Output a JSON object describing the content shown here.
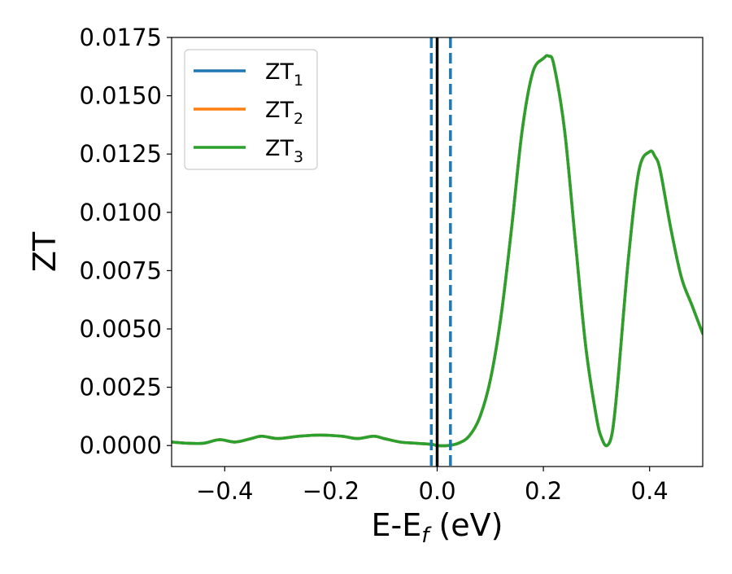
{
  "chart_data": {
    "type": "line",
    "xlabel": "E-E",
    "xlabel_subscript": "f",
    "xlabel_unit": " (eV)",
    "ylabel": "ZT",
    "xlim": [
      -0.5,
      0.5
    ],
    "ylim": [
      -0.0009,
      0.0175
    ],
    "xticks": [
      -0.4,
      -0.2,
      0.0,
      0.2,
      0.4
    ],
    "xtick_labels": [
      "−0.4",
      "−0.2",
      "0.0",
      "0.2",
      "0.4"
    ],
    "yticks": [
      0.0,
      0.0025,
      0.005,
      0.0075,
      0.01,
      0.0125,
      0.015,
      0.0175
    ],
    "ytick_labels": [
      "0.0000",
      "0.0025",
      "0.0050",
      "0.0075",
      "0.0100",
      "0.0125",
      "0.0150",
      "0.0175"
    ],
    "grid": false,
    "legend_position": "top-left",
    "vertical_lines": [
      {
        "x": -0.011,
        "style": "dashed",
        "color": "#1f77b4"
      },
      {
        "x": 0.0,
        "style": "solid",
        "color": "#000000"
      },
      {
        "x": 0.025,
        "style": "dashed",
        "color": "#1f77b4"
      }
    ],
    "series": [
      {
        "name": "ZT",
        "subscript": "1",
        "color": "#1f77b4",
        "x": [
          -0.5,
          -0.47,
          -0.44,
          -0.41,
          -0.38,
          -0.35,
          -0.33,
          -0.3,
          -0.26,
          -0.22,
          -0.18,
          -0.15,
          -0.12,
          -0.1,
          -0.07,
          -0.04,
          -0.01,
          0.0,
          0.02,
          0.04,
          0.06,
          0.08,
          0.1,
          0.12,
          0.14,
          0.16,
          0.18,
          0.2,
          0.21,
          0.22,
          0.24,
          0.26,
          0.28,
          0.3,
          0.31,
          0.32,
          0.33,
          0.34,
          0.36,
          0.38,
          0.4,
          0.41,
          0.42,
          0.44,
          0.46,
          0.48,
          0.5
        ],
        "y": [
          0.00015,
          0.0001,
          0.0001,
          0.00025,
          0.00015,
          0.0003,
          0.0004,
          0.0003,
          0.0004,
          0.00045,
          0.0004,
          0.0003,
          0.0004,
          0.0003,
          0.00015,
          0.0001,
          5e-05,
          0.0,
          0.0,
          0.0001,
          0.0004,
          0.0012,
          0.0028,
          0.0055,
          0.0093,
          0.0135,
          0.016,
          0.0166,
          0.0167,
          0.0163,
          0.0135,
          0.0088,
          0.0042,
          0.0012,
          0.0003,
          0.0,
          0.0006,
          0.0027,
          0.008,
          0.0118,
          0.0126,
          0.0124,
          0.0118,
          0.0093,
          0.0072,
          0.006,
          0.0048
        ]
      },
      {
        "name": "ZT",
        "subscript": "2",
        "color": "#ff7f0e",
        "x": [
          -0.5,
          -0.47,
          -0.44,
          -0.41,
          -0.38,
          -0.35,
          -0.33,
          -0.3,
          -0.26,
          -0.22,
          -0.18,
          -0.15,
          -0.12,
          -0.1,
          -0.07,
          -0.04,
          -0.01,
          0.0,
          0.02,
          0.04,
          0.06,
          0.08,
          0.1,
          0.12,
          0.14,
          0.16,
          0.18,
          0.2,
          0.21,
          0.22,
          0.24,
          0.26,
          0.28,
          0.3,
          0.31,
          0.32,
          0.33,
          0.34,
          0.36,
          0.38,
          0.4,
          0.41,
          0.42,
          0.44,
          0.46,
          0.48,
          0.5
        ],
        "y": [
          0.00015,
          0.0001,
          0.0001,
          0.00025,
          0.00015,
          0.0003,
          0.0004,
          0.0003,
          0.0004,
          0.00045,
          0.0004,
          0.0003,
          0.0004,
          0.0003,
          0.00015,
          0.0001,
          5e-05,
          0.0,
          0.0,
          0.0001,
          0.0004,
          0.0012,
          0.0028,
          0.0055,
          0.0093,
          0.0135,
          0.016,
          0.0166,
          0.0167,
          0.0163,
          0.0135,
          0.0088,
          0.0042,
          0.0012,
          0.0003,
          0.0,
          0.0006,
          0.0027,
          0.008,
          0.0118,
          0.0126,
          0.0124,
          0.0118,
          0.0093,
          0.0072,
          0.006,
          0.0048
        ]
      },
      {
        "name": "ZT",
        "subscript": "3",
        "color": "#2ca02c",
        "x": [
          -0.5,
          -0.47,
          -0.44,
          -0.41,
          -0.38,
          -0.35,
          -0.33,
          -0.3,
          -0.26,
          -0.22,
          -0.18,
          -0.15,
          -0.12,
          -0.1,
          -0.07,
          -0.04,
          -0.01,
          0.0,
          0.02,
          0.04,
          0.06,
          0.08,
          0.1,
          0.12,
          0.14,
          0.16,
          0.18,
          0.2,
          0.21,
          0.22,
          0.24,
          0.26,
          0.28,
          0.3,
          0.31,
          0.32,
          0.33,
          0.34,
          0.36,
          0.38,
          0.4,
          0.41,
          0.42,
          0.44,
          0.46,
          0.48,
          0.5
        ],
        "y": [
          0.00015,
          0.0001,
          0.0001,
          0.00025,
          0.00015,
          0.0003,
          0.0004,
          0.0003,
          0.0004,
          0.00045,
          0.0004,
          0.0003,
          0.0004,
          0.0003,
          0.00015,
          0.0001,
          5e-05,
          0.0,
          0.0,
          0.0001,
          0.0004,
          0.0012,
          0.0028,
          0.0055,
          0.0093,
          0.0135,
          0.016,
          0.0166,
          0.0167,
          0.0163,
          0.0135,
          0.0088,
          0.0042,
          0.0012,
          0.0003,
          0.0,
          0.0006,
          0.0027,
          0.008,
          0.0118,
          0.0126,
          0.0124,
          0.0118,
          0.0093,
          0.0072,
          0.006,
          0.0048
        ]
      }
    ]
  }
}
